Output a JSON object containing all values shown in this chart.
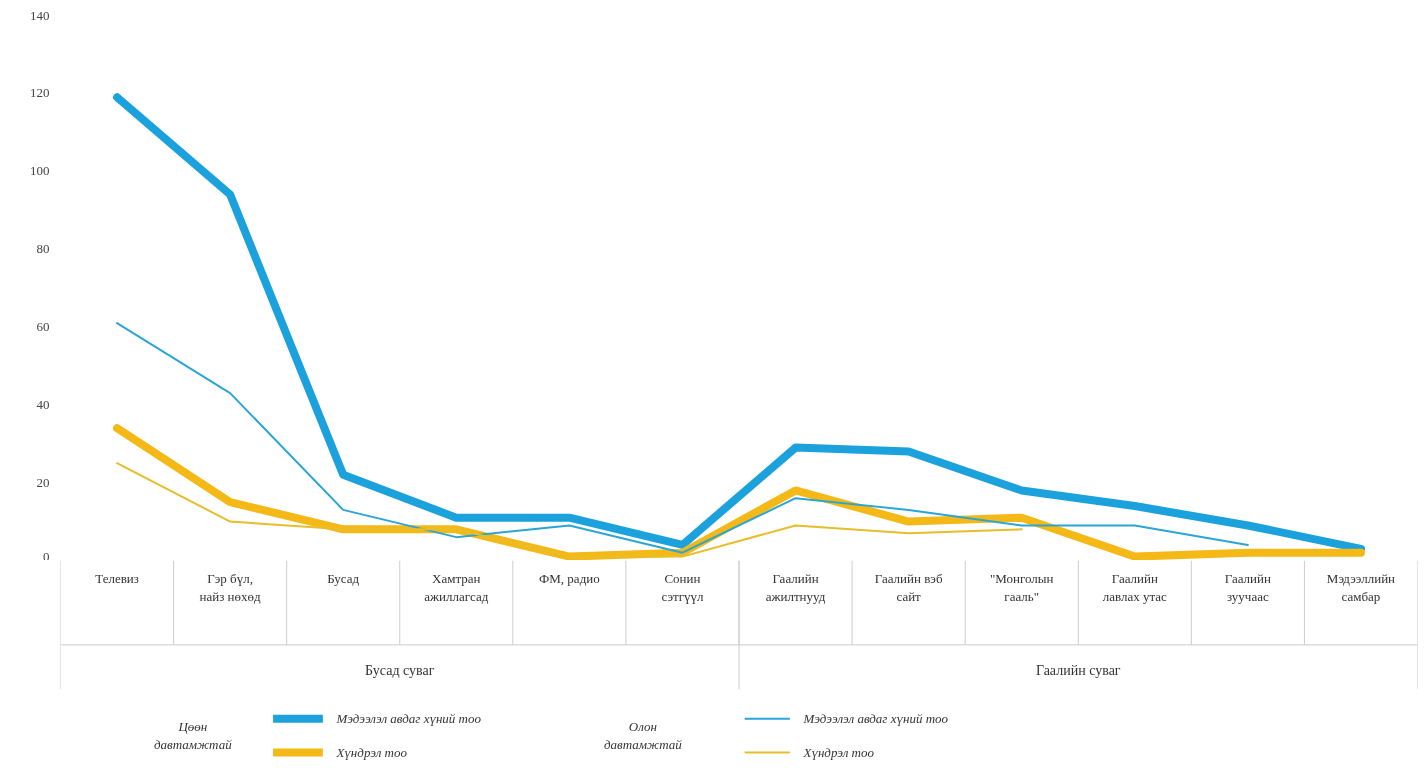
{
  "chart_data": {
    "type": "line",
    "categories": [
      "Телевиз",
      "Гэр бүл, найз нөхөд",
      "Бусад",
      "Хамтран ажиллагсад",
      "ФМ, радио",
      "Сонин сэтгүүл",
      "Гаалийн ажилтнууд",
      "Гаалийн вэб сайт",
      "\"Монголын гааль\"",
      "Гаалийн лавлах утас",
      "Гаалийн зуучаас",
      "Мэдээллийн самбар"
    ],
    "series": [
      {
        "name": "Мэдээлэл авдаг хүний тоо",
        "color": "#1ba1dc",
        "values": [
          119,
          94,
          22,
          11,
          11,
          4,
          29,
          28,
          18,
          14,
          9,
          3
        ]
      },
      {
        "name": "Хүндрэл тоо",
        "color": "#f4b916",
        "values": [
          34,
          15,
          8,
          8,
          1,
          2,
          18,
          10,
          11,
          1,
          2,
          2
        ]
      },
      {
        "name": "Мэдээлэл авдаг хүний тоо",
        "color": "#2aa6d6",
        "values": [
          61,
          43,
          13,
          6,
          9,
          2,
          16,
          13,
          9,
          9,
          4,
          null
        ]
      },
      {
        "name": "Хүндрэл тоо",
        "color": "#e8bd2a",
        "values": [
          25,
          10,
          8,
          8,
          1,
          1,
          9,
          7,
          8,
          null,
          null,
          null
        ]
      }
    ],
    "ylim": [
      0,
      140
    ],
    "yticks": [
      0,
      20,
      40,
      60,
      80,
      100,
      120,
      140
    ],
    "grid": false,
    "legend": "bottom",
    "marker": "none",
    "line_style": "solid",
    "annotations": [
      "Бусад суваг",
      "Гаалийн суваг",
      "Цөөн давтамжтай",
      "Олон давтамжтай"
    ]
  }
}
